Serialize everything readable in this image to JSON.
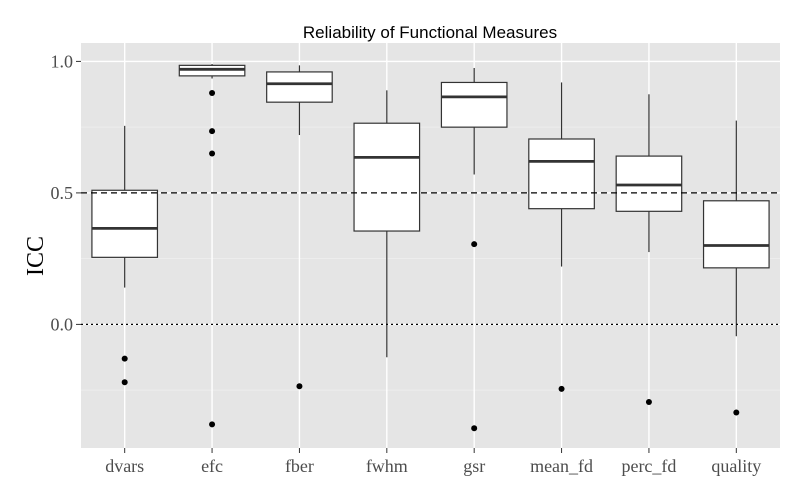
{
  "chart_data": {
    "type": "box",
    "title": "Reliability of Functional Measures",
    "xlabel": "",
    "ylabel": "ICC",
    "ylim": [
      -0.47,
      1.07
    ],
    "yticks": [
      0.0,
      0.5,
      1.0
    ],
    "ytick_labels": [
      "0.0",
      "0.5",
      "1.0"
    ],
    "grid": true,
    "reference_lines": [
      {
        "y": 0.5,
        "style": "dashed"
      },
      {
        "y": 0.0,
        "style": "dotted"
      }
    ],
    "categories": [
      "dvars",
      "efc",
      "fber",
      "fwhm",
      "gsr",
      "mean_fd",
      "perc_fd",
      "quality"
    ],
    "boxes": [
      {
        "name": "dvars",
        "whisker_low": 0.14,
        "q1": 0.255,
        "median": 0.365,
        "q3": 0.51,
        "whisker_high": 0.755,
        "outliers": [
          -0.13,
          -0.22
        ]
      },
      {
        "name": "efc",
        "whisker_low": 0.935,
        "q1": 0.945,
        "median": 0.97,
        "q3": 0.985,
        "whisker_high": 0.99,
        "outliers": [
          0.88,
          0.735,
          0.65,
          -0.38
        ]
      },
      {
        "name": "fber",
        "whisker_low": 0.72,
        "q1": 0.845,
        "median": 0.915,
        "q3": 0.96,
        "whisker_high": 0.985,
        "outliers": [
          -0.235
        ]
      },
      {
        "name": "fwhm",
        "whisker_low": -0.125,
        "q1": 0.355,
        "median": 0.635,
        "q3": 0.765,
        "whisker_high": 0.89,
        "outliers": []
      },
      {
        "name": "gsr",
        "whisker_low": 0.57,
        "q1": 0.75,
        "median": 0.865,
        "q3": 0.92,
        "whisker_high": 0.975,
        "outliers": [
          0.305,
          -0.395
        ]
      },
      {
        "name": "mean_fd",
        "whisker_low": 0.22,
        "q1": 0.44,
        "median": 0.62,
        "q3": 0.705,
        "whisker_high": 0.92,
        "outliers": [
          -0.245
        ]
      },
      {
        "name": "perc_fd",
        "whisker_low": 0.275,
        "q1": 0.43,
        "median": 0.53,
        "q3": 0.64,
        "whisker_high": 0.875,
        "outliers": [
          -0.295
        ]
      },
      {
        "name": "quality",
        "whisker_low": -0.045,
        "q1": 0.215,
        "median": 0.3,
        "q3": 0.47,
        "whisker_high": 0.775,
        "outliers": [
          -0.335
        ]
      }
    ],
    "colors": {
      "panel_background": "#e5e5e5",
      "grid_major": "#ffffff",
      "grid_minor": "#f0f0f0",
      "box_fill": "#ffffff",
      "box_stroke": "#333333",
      "median_stroke": "#333333",
      "outlier_fill": "#000000",
      "reference_line": "#000000"
    }
  }
}
